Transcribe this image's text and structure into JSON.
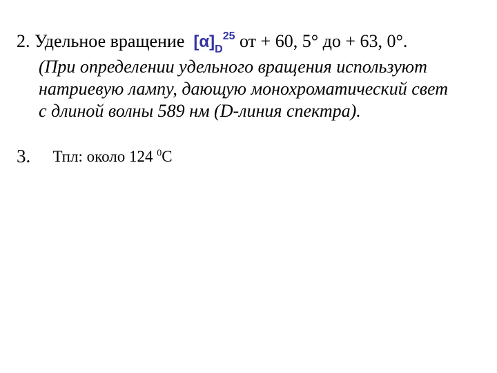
{
  "colors": {
    "text": "#000000",
    "accent": "#3232a2",
    "background": "#ffffff"
  },
  "item2": {
    "number": "2.",
    "lead": "Удельное вращение",
    "symbol_open": "[",
    "symbol_alpha": "α",
    "symbol_close": "]",
    "symbol_sub": "D",
    "symbol_sup": "25",
    "tail": "от + 60, 5° до + 63, 0°.",
    "note": "(При определении удельного вращения используют натриевую лампу, дающую монохроматический свет с длиной волны 589 нм (D-линия спектра)."
  },
  "item3": {
    "number": "3.",
    "label": "Тпл: около 124 ",
    "deg_sup": "0",
    "unit": "С"
  }
}
